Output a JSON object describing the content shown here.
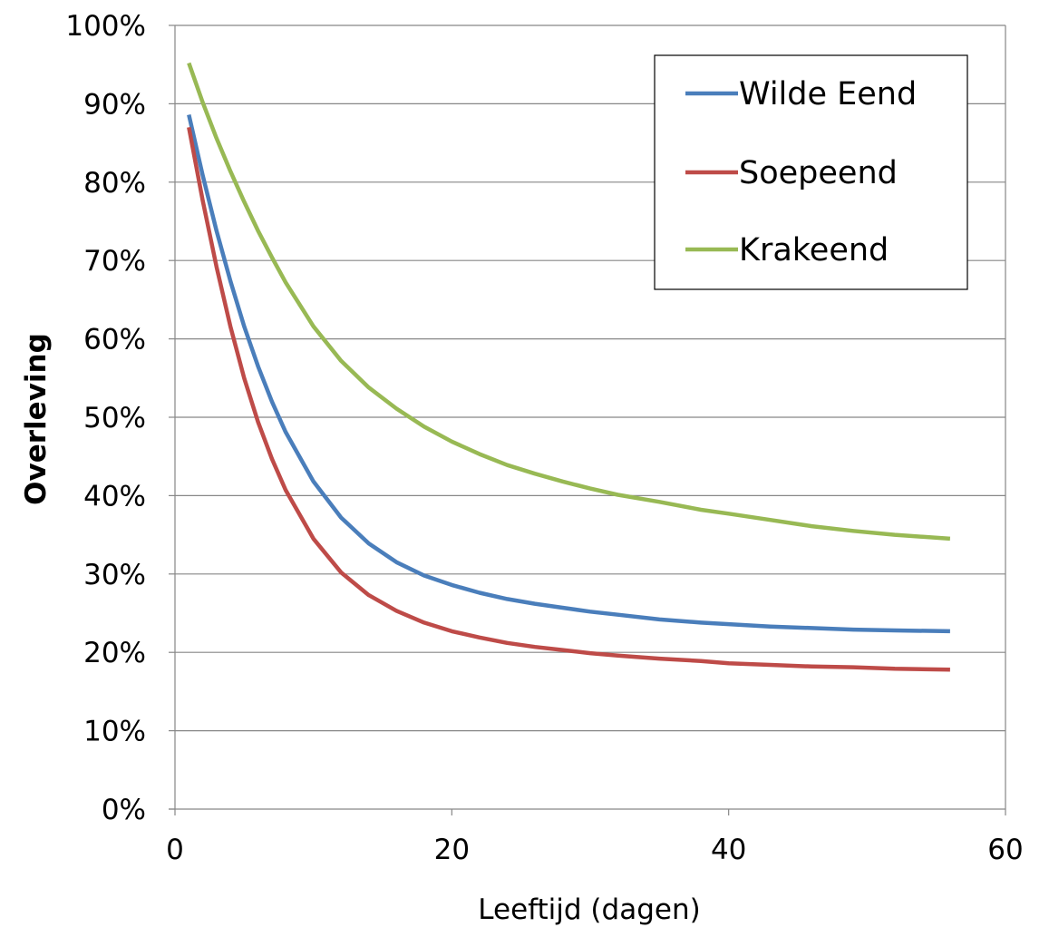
{
  "chart_data": {
    "type": "line",
    "title": "",
    "xlabel": "Leeftijd (dagen)",
    "ylabel": "Overleving",
    "xlim": [
      0,
      60
    ],
    "ylim": [
      0,
      100
    ],
    "x_ticks": [
      "0",
      "20",
      "40",
      "60"
    ],
    "y_ticks": [
      "0%",
      "10%",
      "20%",
      "30%",
      "40%",
      "50%",
      "60%",
      "70%",
      "80%",
      "90%",
      "100%"
    ],
    "grid": "horizontal",
    "legend_position": "top-right",
    "x": [
      1,
      2,
      3,
      4,
      5,
      6,
      7,
      8,
      10,
      12,
      14,
      16,
      18,
      20,
      22,
      24,
      26,
      28,
      30,
      32,
      35,
      38,
      40,
      43,
      46,
      49,
      52,
      56
    ],
    "series": [
      {
        "name": "Wilde Eend",
        "color": "#4a7ebb",
        "values": [
          88.6,
          80.9,
          73.8,
          67.4,
          61.6,
          56.5,
          52.0,
          48.1,
          41.8,
          37.2,
          33.9,
          31.5,
          29.8,
          28.6,
          27.6,
          26.8,
          26.2,
          25.7,
          25.2,
          24.8,
          24.2,
          23.8,
          23.6,
          23.3,
          23.1,
          22.9,
          22.8,
          22.7
        ]
      },
      {
        "name": "Soepeend",
        "color": "#be4b48",
        "values": [
          87.0,
          77.7,
          69.2,
          61.6,
          55.0,
          49.4,
          44.7,
          40.7,
          34.5,
          30.2,
          27.3,
          25.3,
          23.8,
          22.7,
          21.9,
          21.2,
          20.7,
          20.3,
          19.9,
          19.6,
          19.2,
          18.9,
          18.6,
          18.4,
          18.2,
          18.1,
          17.9,
          17.8
        ]
      },
      {
        "name": "Krakeend",
        "color": "#98b954",
        "values": [
          95.2,
          90.2,
          85.6,
          81.4,
          77.5,
          73.8,
          70.4,
          67.2,
          61.6,
          57.2,
          53.8,
          51.1,
          48.8,
          46.9,
          45.3,
          43.9,
          42.8,
          41.8,
          40.9,
          40.1,
          39.2,
          38.2,
          37.7,
          36.9,
          36.1,
          35.5,
          35.0,
          34.5
        ]
      }
    ]
  }
}
